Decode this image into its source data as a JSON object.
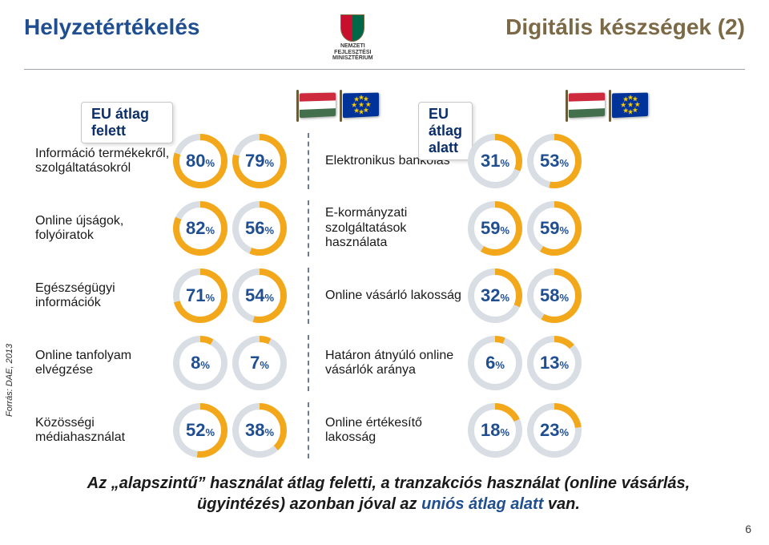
{
  "header": {
    "title_left": "Helyzetértékelés",
    "title_right": "Digitális készségek (2)",
    "crest_line1": "NEMZETI FEJLESZTÉSI",
    "crest_line2": "MINISZTÉRIUM"
  },
  "source": "Forrás: DAE, 2013",
  "badges": {
    "above": "EU átlag felett",
    "below": "EU átlag alatt"
  },
  "colors": {
    "ring_fg": "#f3a81c",
    "ring_bg": "#d9dde4",
    "value_text": "#1f4e91",
    "title_left": "#1f4e91",
    "title_right": "#7c6a47",
    "divider": "#6f7a8a"
  },
  "donut_style": {
    "outer": 68,
    "inner": 52,
    "num_fontsize": 22,
    "pct_fontsize": 13
  },
  "rows": [
    {
      "left": {
        "label": "Információ termékekről, szolgáltatásokról",
        "hu": 80,
        "eu": 79
      },
      "right": {
        "label": "Elektronikus bankolás",
        "hu": 31,
        "eu": 53
      }
    },
    {
      "left": {
        "label": "Online újságok, folyóiratok",
        "hu": 82,
        "eu": 56
      },
      "right": {
        "label": "E-kormányzati szolgáltatások használata",
        "hu": 59,
        "eu": 59
      }
    },
    {
      "left": {
        "label": "Egészségügyi információk",
        "hu": 71,
        "eu": 54
      },
      "right": {
        "label": "Online vásárló lakosság",
        "hu": 32,
        "eu": 58
      }
    },
    {
      "left": {
        "label": "Online tanfolyam elvégzése",
        "hu": 8,
        "eu": 7
      },
      "right": {
        "label": "Határon átnyúló online vásárlók aránya",
        "hu": 6,
        "eu": 13
      }
    },
    {
      "left": {
        "label": "Közösségi médiahasználat",
        "hu": 52,
        "eu": 38
      },
      "right": {
        "label": "Online értékesítő lakosság",
        "hu": 18,
        "eu": 23
      }
    }
  ],
  "footnote": {
    "line1_pre": "Az „alapszintű” használat átlag feletti, a tranzakciós használat (online vásárlás,",
    "line2_pre": "ügyintézés) azonban jóval az ",
    "line2_em": "uniós átlag alatt",
    "line2_post": " van."
  },
  "page_number": "6"
}
